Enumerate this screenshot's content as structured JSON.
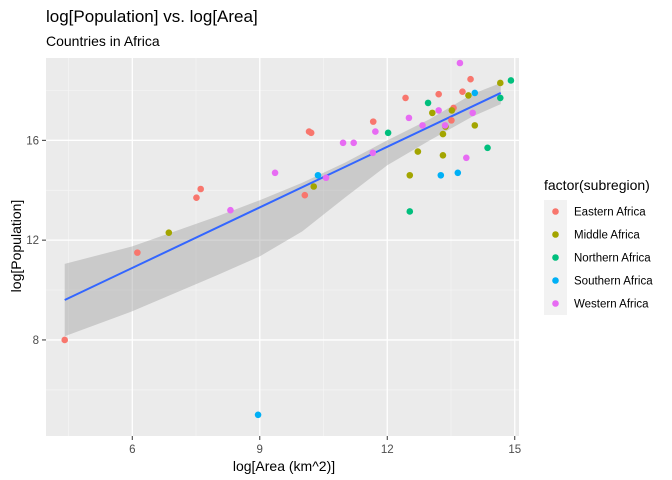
{
  "chart_data": {
    "type": "scatter",
    "title": "log[Population] vs. log[Area]",
    "subtitle": "Countries in Africa",
    "xlabel": "log[Area (km^2)]",
    "ylabel": "log[Population]",
    "xlim": [
      3.97,
      15.1
    ],
    "ylim": [
      4.15,
      19.3
    ],
    "x_ticks": [
      6,
      9,
      12,
      15
    ],
    "y_ticks": [
      8,
      12,
      16
    ],
    "grid": true,
    "legend_title": "factor(subregion)",
    "legend_position": "right",
    "series": [
      {
        "name": "Eastern Africa",
        "color": "#F8766D",
        "points": [
          [
            4.41,
            8.0
          ],
          [
            6.12,
            11.5
          ],
          [
            7.51,
            13.7
          ],
          [
            7.61,
            14.05
          ],
          [
            10.06,
            13.8
          ],
          [
            10.16,
            16.35
          ],
          [
            10.21,
            16.3
          ],
          [
            11.67,
            16.75
          ],
          [
            12.43,
            17.7
          ],
          [
            13.21,
            17.85
          ],
          [
            13.51,
            16.8
          ],
          [
            13.56,
            17.3
          ],
          [
            13.77,
            17.95
          ],
          [
            13.96,
            18.45
          ]
        ]
      },
      {
        "name": "Middle Africa",
        "color": "#A3A500",
        "points": [
          [
            6.86,
            12.3
          ],
          [
            10.27,
            14.15
          ],
          [
            12.53,
            14.6
          ],
          [
            12.72,
            15.55
          ],
          [
            13.06,
            17.1
          ],
          [
            13.31,
            15.4
          ],
          [
            13.31,
            16.25
          ],
          [
            13.37,
            16.55
          ],
          [
            13.52,
            17.2
          ],
          [
            13.91,
            17.8
          ],
          [
            14.06,
            16.6
          ],
          [
            14.66,
            18.3
          ]
        ]
      },
      {
        "name": "Northern Africa",
        "color": "#00BF7D",
        "points": [
          [
            12.02,
            16.3
          ],
          [
            12.53,
            13.15
          ],
          [
            12.96,
            17.5
          ],
          [
            14.36,
            15.7
          ],
          [
            14.66,
            17.7
          ],
          [
            14.91,
            18.4
          ]
        ]
      },
      {
        "name": "Southern Africa",
        "color": "#00B0F6",
        "points": [
          [
            8.96,
            5.0
          ],
          [
            10.37,
            14.6
          ],
          [
            13.26,
            14.6
          ],
          [
            13.66,
            14.7
          ],
          [
            14.06,
            17.9
          ]
        ]
      },
      {
        "name": "Western Africa",
        "color": "#E76BF3",
        "points": [
          [
            8.31,
            13.2
          ],
          [
            9.36,
            14.7
          ],
          [
            10.56,
            14.5
          ],
          [
            10.96,
            15.9
          ],
          [
            11.21,
            15.9
          ],
          [
            11.66,
            15.5
          ],
          [
            11.72,
            16.35
          ],
          [
            12.51,
            16.9
          ],
          [
            12.83,
            16.6
          ],
          [
            13.21,
            17.2
          ],
          [
            13.36,
            16.6
          ],
          [
            13.71,
            19.1
          ],
          [
            13.86,
            15.3
          ],
          [
            14.01,
            17.1
          ]
        ]
      }
    ],
    "fit": {
      "method": "lm",
      "color": "#3366FF",
      "x": [
        4.41,
        14.67
      ],
      "y": [
        9.6,
        17.9
      ],
      "band_color": "#999999",
      "band_lower": [
        [
          4.41,
          8.15
        ],
        [
          6.0,
          9.15
        ],
        [
          8.0,
          10.6
        ],
        [
          9.0,
          11.35
        ],
        [
          10.0,
          12.35
        ],
        [
          11.0,
          13.7
        ],
        [
          12.0,
          15.0
        ],
        [
          13.0,
          16.0
        ],
        [
          14.0,
          16.95
        ],
        [
          14.67,
          17.45
        ]
      ],
      "band_upper": [
        [
          4.41,
          11.05
        ],
        [
          6.0,
          11.75
        ],
        [
          8.0,
          12.95
        ],
        [
          9.0,
          13.6
        ],
        [
          10.0,
          14.3
        ],
        [
          11.0,
          15.1
        ],
        [
          12.0,
          16.0
        ],
        [
          13.0,
          16.85
        ],
        [
          14.0,
          17.85
        ],
        [
          14.67,
          18.3
        ]
      ]
    }
  }
}
